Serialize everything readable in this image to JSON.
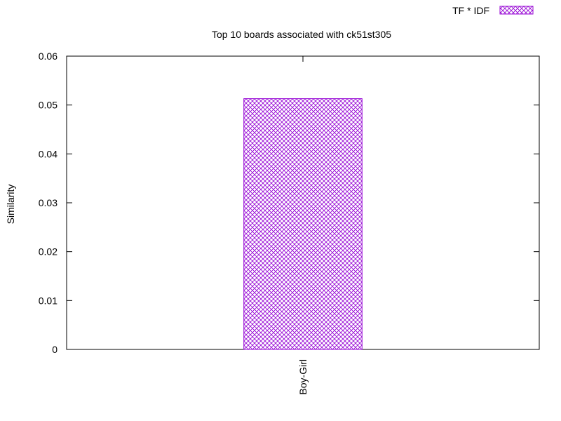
{
  "chart_data": {
    "type": "bar",
    "title": "Top 10 boards associated with ck51st305",
    "xlabel": "",
    "ylabel": "Similarity",
    "categories": [
      "Boy-Girl"
    ],
    "series": [
      {
        "name": "TF * IDF",
        "values": [
          0.0513
        ],
        "color": "#9400d3",
        "pattern": "crosshatch"
      }
    ],
    "ylim": [
      0,
      0.06
    ],
    "yticks": [
      "0",
      "0.01",
      "0.02",
      "0.03",
      "0.04",
      "0.05",
      "0.06"
    ],
    "ytick_values": [
      0,
      0.01,
      0.02,
      0.03,
      0.04,
      0.05,
      0.06
    ],
    "grid": false,
    "legend_position": "top-right"
  }
}
